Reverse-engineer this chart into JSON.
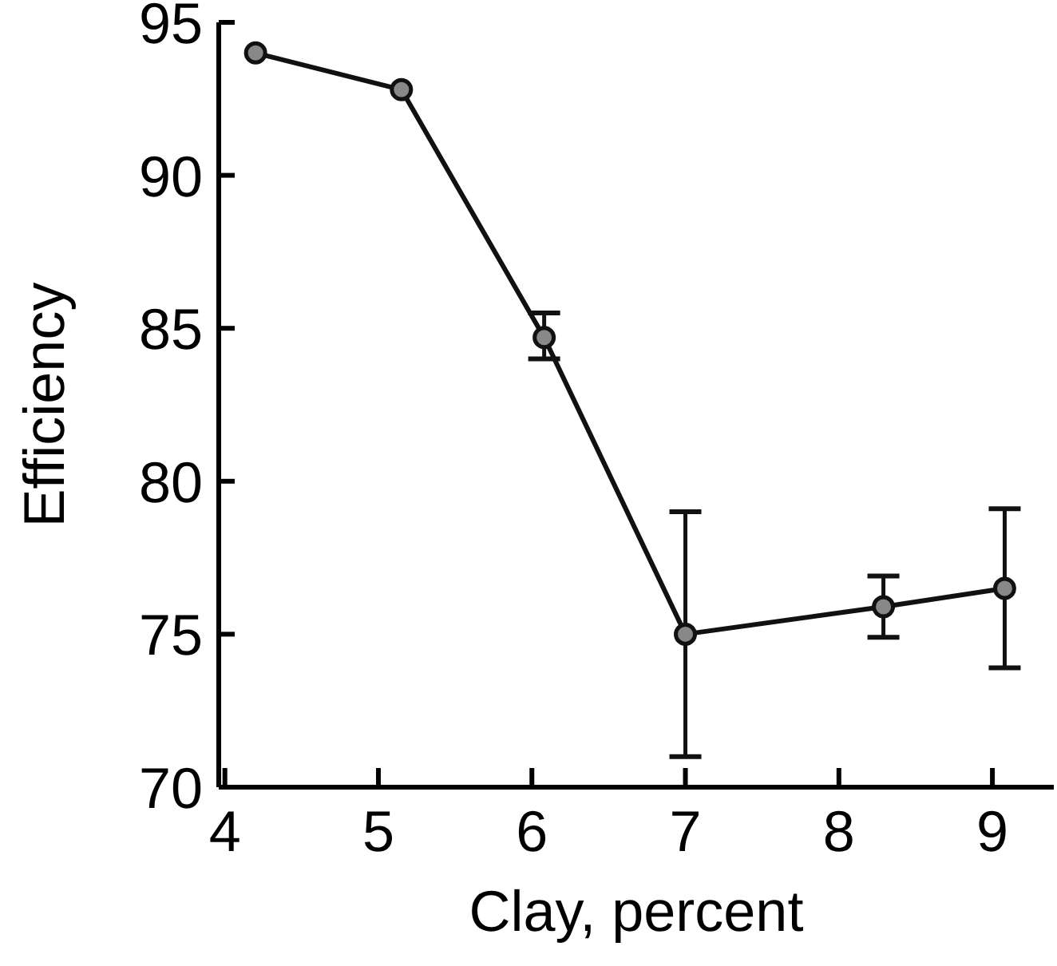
{
  "chart_data": {
    "type": "line",
    "xlabel": "Clay, percent",
    "ylabel": "Efficiency",
    "x": [
      4.2,
      5.15,
      6.08,
      7.0,
      8.29,
      9.08
    ],
    "values": [
      94.0,
      92.8,
      84.7,
      75.0,
      75.9,
      76.5
    ],
    "errors": [
      null,
      null,
      [
        84.0,
        85.5
      ],
      [
        71.0,
        79.0
      ],
      [
        74.9,
        76.9
      ],
      [
        73.9,
        79.1
      ]
    ],
    "color": "#111111",
    "marker": "circle",
    "line_style": "solid",
    "grid": false,
    "xlim": [
      3.96,
      9.4
    ],
    "xticks": [
      4,
      5,
      6,
      7,
      8,
      9
    ],
    "ylim": [
      70,
      95
    ],
    "yticks": [
      70,
      75,
      80,
      85,
      90,
      95
    ]
  }
}
